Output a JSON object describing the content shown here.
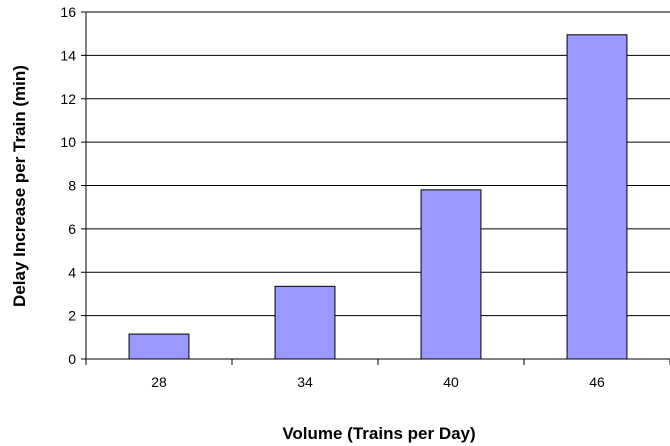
{
  "chart_data": {
    "type": "bar",
    "categories": [
      "28",
      "34",
      "40",
      "46"
    ],
    "values": [
      1.15,
      3.35,
      7.8,
      14.95
    ],
    "xlabel": "Volume (Trains per Day)",
    "ylabel": "Delay Increase per Train (min)",
    "ylim": [
      0,
      16
    ],
    "yticks": [
      0,
      2,
      4,
      6,
      8,
      10,
      12,
      14,
      16
    ],
    "grid": true,
    "legend": "none",
    "colors": {
      "bar_fill": "#9999ff",
      "bar_stroke": "#000000",
      "grid": "#000000"
    }
  }
}
